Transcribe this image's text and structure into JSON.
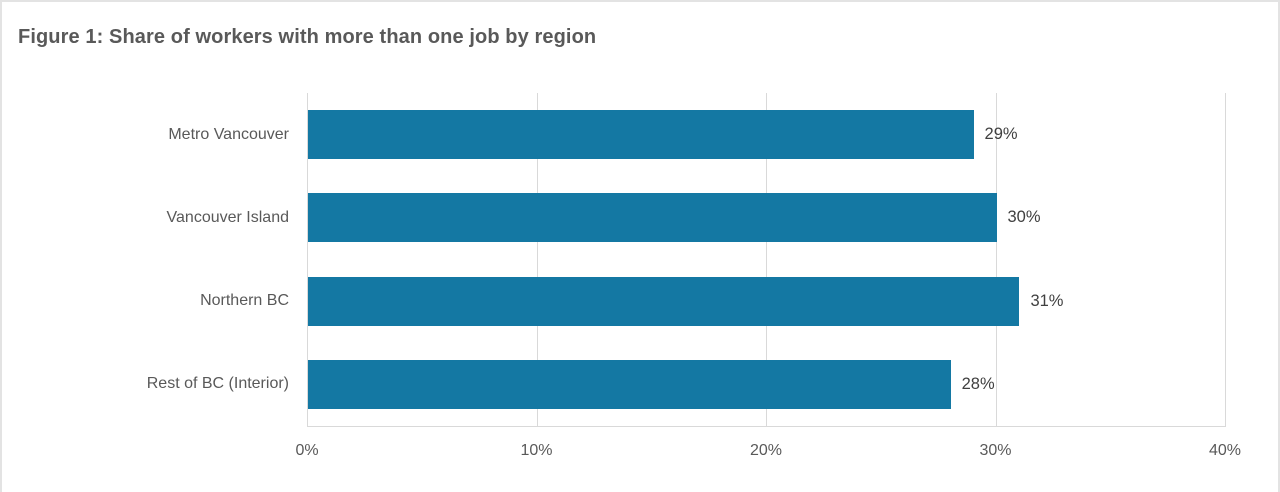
{
  "figure": {
    "title": "Figure 1: Share of workers with more than one job by region"
  },
  "colors": {
    "bar": "#1478A3",
    "gridline": "#D9D9D9",
    "title_text": "#595959",
    "axis_text": "#595959",
    "value_text": "#404040",
    "border": "#E3E3E3"
  },
  "chart_data": {
    "type": "bar",
    "orientation": "horizontal",
    "title": "Figure 1: Share of workers with more than one job by region",
    "categories": [
      "Metro Vancouver",
      "Vancouver Island",
      "Northern BC",
      "Rest of BC (Interior)"
    ],
    "values": [
      29,
      30,
      31,
      28
    ],
    "value_labels": [
      "29%",
      "30%",
      "31%",
      "28%"
    ],
    "x_ticks": [
      "0%",
      "10%",
      "20%",
      "30%",
      "40%"
    ],
    "x_tick_values": [
      0,
      10,
      20,
      30,
      40
    ],
    "xlim": [
      0,
      40
    ],
    "xlabel": "",
    "ylabel": "",
    "grid": "vertical-only",
    "legend": "none",
    "data_labels": "outside-end"
  }
}
